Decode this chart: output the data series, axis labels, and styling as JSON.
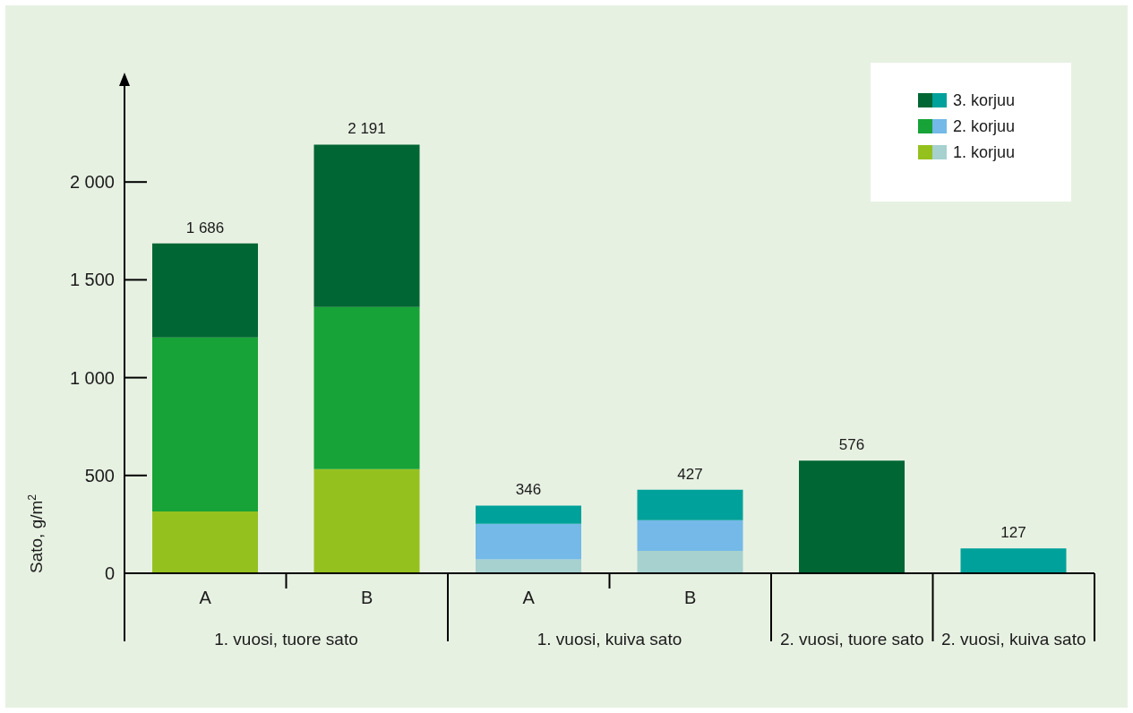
{
  "chart_data": {
    "type": "bar",
    "stacked": true,
    "categories": [
      "A",
      "B",
      "A",
      "B",
      null,
      null
    ],
    "series": [
      {
        "name": "1. korjuu",
        "colors": [
          "#95c11f",
          "#95c11f",
          "#a6d1cf",
          "#a6d1cf",
          "#95c11f",
          "#a6d1cf"
        ],
        "values": [
          316,
          532,
          71,
          115,
          null,
          null
        ]
      },
      {
        "name": "2. korjuu",
        "colors": [
          "#17a337",
          "#17a337",
          "#74b9e7",
          "#74b9e7",
          "#17a337",
          "#74b9e7"
        ],
        "values": [
          889,
          829,
          182,
          156,
          null,
          null
        ]
      },
      {
        "name": "3. korjuu",
        "colors": [
          "#006633",
          "#006633",
          "#00a19a",
          "#00a19a",
          "#006633",
          "#00a19a"
        ],
        "values": [
          481,
          830,
          93,
          156,
          576,
          127
        ]
      }
    ],
    "totals": [
      "1 686",
      "2 191",
      "346",
      "427",
      "576",
      "127"
    ],
    "ylabel": "Sato, g/m$^{2}$",
    "ylim": [
      0,
      2500
    ],
    "yticks": [
      0,
      500,
      {
        "value": 1000,
        "label": "1 000"
      },
      {
        "value": 1500,
        "label": "1 500"
      },
      {
        "value": 2000,
        "label": "2 000"
      }
    ],
    "annotations": [
      "1. vuosi, tuore sato",
      "1. vuosi, kuiva sato",
      "2. vuosi, tuore sato",
      "2. vuosi, kuiva sato"
    ],
    "legend": "top right"
  }
}
